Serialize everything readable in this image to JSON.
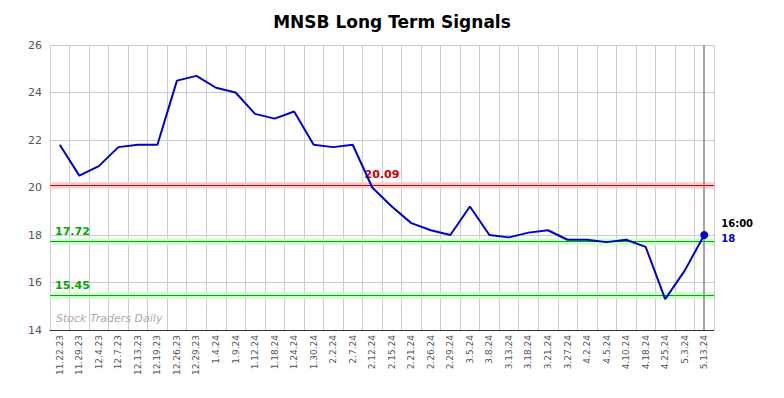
{
  "chart_data": {
    "type": "line",
    "title": "MNSB Long Term Signals",
    "background_color": "#ffffff",
    "categories": [
      "11.22.23",
      "11.29.23",
      "12.4.23",
      "12.7.23",
      "12.13.23",
      "12.19.23",
      "12.26.23",
      "12.29.23",
      "1.4.24",
      "1.9.24",
      "1.12.24",
      "1.18.24",
      "1.24.24",
      "1.30.24",
      "2.2.24",
      "2.7.24",
      "2.12.24",
      "2.15.24",
      "2.21.24",
      "2.26.24",
      "2.29.24",
      "3.5.24",
      "3.8.24",
      "3.13.24",
      "3.18.24",
      "3.21.24",
      "3.27.24",
      "4.2.24",
      "4.5.24",
      "4.10.24",
      "4.18.24",
      "4.25.24",
      "5.3.24",
      "5.13.24"
    ],
    "values": [
      21.8,
      20.5,
      20.9,
      21.7,
      21.8,
      21.8,
      24.5,
      24.7,
      24.2,
      24.0,
      23.1,
      22.9,
      23.2,
      21.8,
      21.7,
      21.8,
      20.0,
      19.2,
      18.5,
      18.2,
      18.0,
      19.2,
      18.0,
      17.9,
      18.1,
      18.2,
      17.8,
      17.8,
      17.7,
      17.8,
      17.5,
      15.3,
      16.5,
      18.0
    ],
    "color": "#0000cc",
    "ylim": [
      14,
      26
    ],
    "yticks": [
      14,
      16,
      18,
      20,
      22,
      24,
      26
    ],
    "grid": true,
    "reference_lines": [
      {
        "value": 20.09,
        "label": "20.09",
        "color": "#cc0000",
        "band": [
          19.96,
          20.22
        ],
        "band_color": "#ffcccc"
      },
      {
        "value": 17.72,
        "label": "17.72",
        "color": "#00aa00",
        "band": [
          17.59,
          17.85
        ],
        "band_color": "#ccffcc"
      },
      {
        "value": 15.45,
        "label": "15.45",
        "color": "#00aa00",
        "band": [
          15.32,
          15.58
        ],
        "band_color": "#ccffcc"
      }
    ],
    "vertical_line": {
      "x": "5.13.24",
      "color": "#888888"
    },
    "end_marker": {
      "color": "#0000cc"
    },
    "end_label": {
      "text": "16:00",
      "color": "#000000"
    },
    "end_value_label": {
      "text": "18",
      "color": "#0000cc"
    },
    "watermark": {
      "text": "Stock Traders Daily",
      "color": "#aaaaaa"
    }
  }
}
